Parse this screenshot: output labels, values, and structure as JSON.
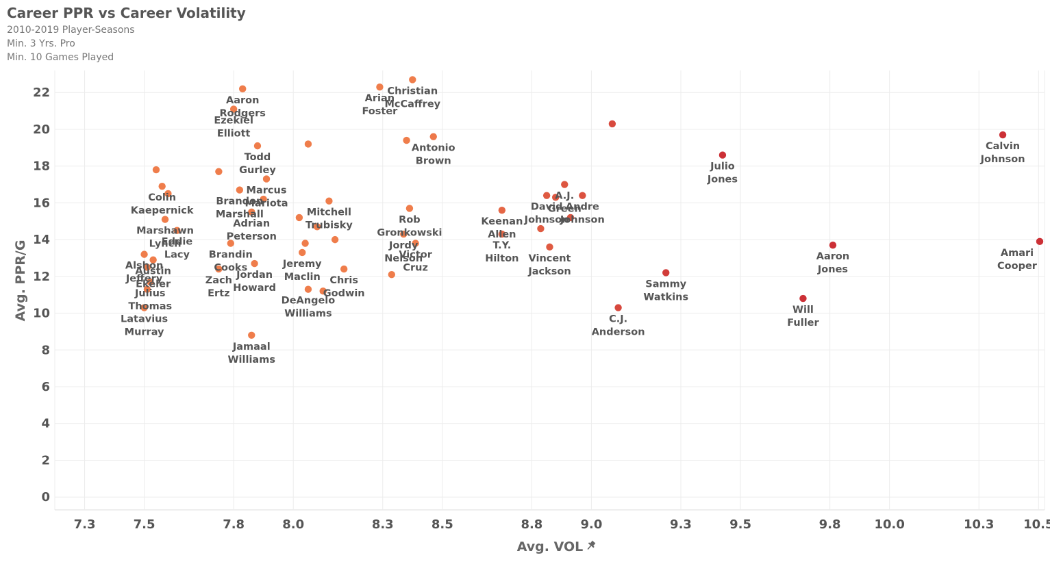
{
  "title": "Career PPR vs Career Volatility",
  "subtitles": [
    "2010-2019 Player-Seasons",
    "Min. 3 Yrs. Pro",
    "Min. 10 Games Played"
  ],
  "chart_data": {
    "type": "scatter",
    "xlabel": "Avg. VOL",
    "xlabel_icon": "pin-icon",
    "ylabel": "Avg. PPR/G",
    "xlim": [
      7.2,
      10.52
    ],
    "ylim": [
      -0.7,
      23.2
    ],
    "xticks": [
      "7.3",
      "7.5",
      "7.8",
      "8.0",
      "8.3",
      "8.5",
      "8.8",
      "9.0",
      "9.3",
      "9.5",
      "9.8",
      "10.0",
      "10.3",
      "10.5"
    ],
    "yticks": [
      0,
      2,
      4,
      6,
      8,
      10,
      12,
      14,
      16,
      18,
      20,
      22
    ],
    "color_low": "#ef7d4b",
    "color_high": "#cc3036",
    "grid": true,
    "points": [
      {
        "x": 7.83,
        "y": 22.2,
        "label": [
          "Aaron",
          "Rodgers"
        ]
      },
      {
        "x": 7.8,
        "y": 21.1,
        "label": [
          "Ezekiel",
          "Elliott"
        ]
      },
      {
        "x": 7.88,
        "y": 19.1,
        "label": [
          "Todd",
          "Gurley"
        ]
      },
      {
        "x": 8.05,
        "y": 19.2,
        "label": []
      },
      {
        "x": 8.29,
        "y": 22.3,
        "label": [
          "Arian",
          "Foster"
        ]
      },
      {
        "x": 8.4,
        "y": 22.7,
        "label": [
          "Christian",
          "McCaffrey"
        ]
      },
      {
        "x": 8.38,
        "y": 19.4,
        "label": []
      },
      {
        "x": 8.47,
        "y": 19.6,
        "label": [
          "Antonio",
          "Brown"
        ]
      },
      {
        "x": 7.54,
        "y": 17.8,
        "label": []
      },
      {
        "x": 7.75,
        "y": 17.7,
        "label": []
      },
      {
        "x": 7.56,
        "y": 16.9,
        "label": [
          "Colin",
          "Kaepernick"
        ]
      },
      {
        "x": 7.58,
        "y": 16.5,
        "label": []
      },
      {
        "x": 7.82,
        "y": 16.7,
        "label": [
          "Brandon",
          "Marshall"
        ]
      },
      {
        "x": 7.91,
        "y": 17.3,
        "label": [
          "Marcus",
          "Mariota"
        ]
      },
      {
        "x": 7.9,
        "y": 16.2,
        "label": []
      },
      {
        "x": 7.86,
        "y": 15.5,
        "label": [
          "Adrian",
          "Peterson"
        ]
      },
      {
        "x": 8.12,
        "y": 16.1,
        "label": [
          "Mitchell",
          "Trubisky"
        ]
      },
      {
        "x": 8.39,
        "y": 15.7,
        "label": [
          "Rob",
          "Gronkowski"
        ]
      },
      {
        "x": 7.57,
        "y": 15.1,
        "label": [
          "Marshawn",
          "Lynch"
        ]
      },
      {
        "x": 7.61,
        "y": 14.5,
        "label": [
          "Eddie",
          "Lacy"
        ]
      },
      {
        "x": 8.02,
        "y": 15.2,
        "label": []
      },
      {
        "x": 8.08,
        "y": 14.7,
        "label": []
      },
      {
        "x": 7.79,
        "y": 13.8,
        "label": [
          "Brandin",
          "Cooks"
        ]
      },
      {
        "x": 8.04,
        "y": 13.8,
        "label": []
      },
      {
        "x": 8.14,
        "y": 14.0,
        "label": []
      },
      {
        "x": 8.37,
        "y": 14.3,
        "label": [
          "Jordy",
          "Nelson"
        ]
      },
      {
        "x": 8.41,
        "y": 13.8,
        "label": [
          "Victor",
          "Cruz"
        ]
      },
      {
        "x": 7.5,
        "y": 13.2,
        "label": [
          "Alshon",
          "Jeffery"
        ]
      },
      {
        "x": 7.53,
        "y": 12.9,
        "label": [
          "Austin",
          "Ekeler"
        ]
      },
      {
        "x": 7.51,
        "y": 12.5,
        "label": []
      },
      {
        "x": 7.75,
        "y": 12.4,
        "label": [
          "Zach",
          "Ertz"
        ]
      },
      {
        "x": 7.87,
        "y": 12.7,
        "label": [
          "Jordan",
          "Howard"
        ]
      },
      {
        "x": 8.03,
        "y": 13.3,
        "label": [
          "Jeremy",
          "Maclin"
        ]
      },
      {
        "x": 8.17,
        "y": 12.4,
        "label": [
          "Chris",
          "Godwin"
        ]
      },
      {
        "x": 8.33,
        "y": 12.1,
        "label": []
      },
      {
        "x": 7.52,
        "y": 11.7,
        "label": [
          "Julius",
          "Thomas"
        ]
      },
      {
        "x": 7.51,
        "y": 11.3,
        "label": []
      },
      {
        "x": 8.05,
        "y": 11.3,
        "label": [
          "DeAngelo",
          "Williams"
        ]
      },
      {
        "x": 8.1,
        "y": 11.2,
        "label": []
      },
      {
        "x": 7.5,
        "y": 10.3,
        "label": [
          "Latavius",
          "Murray"
        ]
      },
      {
        "x": 7.86,
        "y": 8.8,
        "label": [
          "Jamaal",
          "Williams"
        ]
      },
      {
        "x": 9.07,
        "y": 20.3,
        "label": []
      },
      {
        "x": 9.44,
        "y": 18.6,
        "label": [
          "Julio",
          "Jones"
        ]
      },
      {
        "x": 10.38,
        "y": 19.7,
        "label": [
          "Calvin",
          "Johnson"
        ]
      },
      {
        "x": 8.91,
        "y": 17.0,
        "label": [
          "A.J.",
          "Green"
        ]
      },
      {
        "x": 8.85,
        "y": 16.4,
        "label": [
          "David",
          "Johnson"
        ]
      },
      {
        "x": 8.88,
        "y": 16.3,
        "label": []
      },
      {
        "x": 8.97,
        "y": 16.4,
        "label": [
          "Andre",
          "Johnson"
        ]
      },
      {
        "x": 8.93,
        "y": 15.2,
        "label": []
      },
      {
        "x": 8.7,
        "y": 15.6,
        "label": [
          "Keenan",
          "Allen"
        ]
      },
      {
        "x": 8.7,
        "y": 14.3,
        "label": [
          "T.Y.",
          "Hilton"
        ]
      },
      {
        "x": 8.83,
        "y": 14.6,
        "label": []
      },
      {
        "x": 8.86,
        "y": 13.6,
        "label": [
          "Vincent",
          "Jackson"
        ]
      },
      {
        "x": 9.81,
        "y": 13.7,
        "label": [
          "Aaron",
          "Jones"
        ]
      },
      {
        "x": 10.52,
        "y": 13.9,
        "label": [
          "Amari",
          "Cooper"
        ]
      },
      {
        "x": 9.25,
        "y": 12.2,
        "label": [
          "Sammy",
          "Watkins"
        ]
      },
      {
        "x": 9.71,
        "y": 10.8,
        "label": [
          "Will",
          "Fuller"
        ]
      },
      {
        "x": 9.09,
        "y": 10.3,
        "label": [
          "C.J.",
          "Anderson"
        ]
      }
    ]
  }
}
